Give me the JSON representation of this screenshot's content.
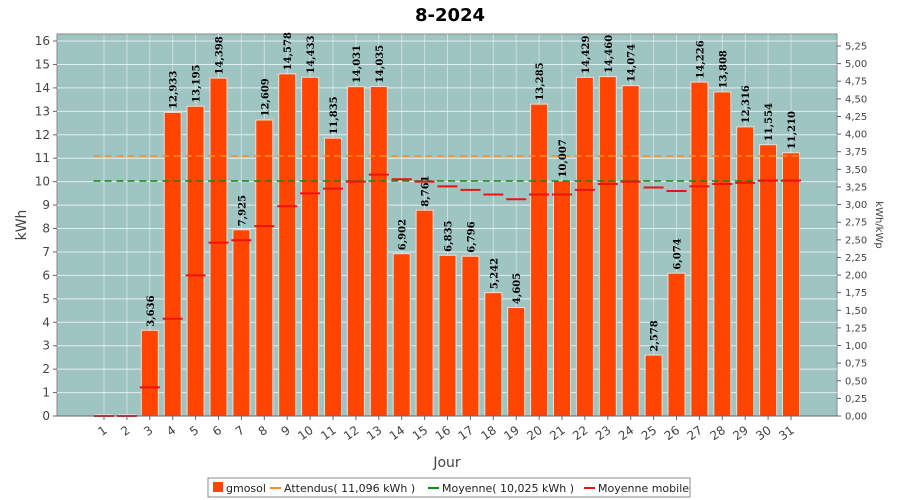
{
  "chart_data": {
    "type": "bar",
    "title": "8-2024",
    "xlabel": "Jour",
    "ylabel": "kWh",
    "ylabel_right": "kWh/kWp",
    "ylim": [
      0,
      16.3
    ],
    "yticks": [
      "0",
      "1",
      "2",
      "3",
      "4",
      "5",
      "6",
      "7",
      "8",
      "9",
      "10",
      "11",
      "12",
      "13",
      "14",
      "15",
      "16"
    ],
    "ylim_right": [
      0,
      5.42
    ],
    "yticks_right": [
      "0,00",
      "0,25",
      "0,50",
      "0,75",
      "1,00",
      "1,25",
      "1,50",
      "1,75",
      "2,00",
      "2,25",
      "2,50",
      "2,75",
      "3,00",
      "3,25",
      "3,50",
      "3,75",
      "4,00",
      "4,25",
      "4,50",
      "4,75",
      "5,00",
      "5,25"
    ],
    "categories": [
      "1",
      "2",
      "3",
      "4",
      "5",
      "6",
      "7",
      "8",
      "9",
      "10",
      "11",
      "12",
      "13",
      "14",
      "15",
      "16",
      "17",
      "18",
      "19",
      "20",
      "21",
      "22",
      "23",
      "24",
      "25",
      "26",
      "27",
      "28",
      "29",
      "30",
      "31"
    ],
    "series": [
      {
        "name": "gmosol",
        "color": "#ff4500",
        "values": [
          0.03,
          0.03,
          3.636,
          12.933,
          13.195,
          14.398,
          7.925,
          12.609,
          14.578,
          14.433,
          11.835,
          14.031,
          14.035,
          6.902,
          8.761,
          6.835,
          6.796,
          5.242,
          4.605,
          13.285,
          10.007,
          14.429,
          14.46,
          14.074,
          2.578,
          6.074,
          14.226,
          13.808,
          12.316,
          11.554,
          11.21
        ],
        "labels": [
          "",
          "",
          "3,636",
          "12,933",
          "13,195",
          "14,398",
          "7,925",
          "12,609",
          "14,578",
          "14,433",
          "11,835",
          "14,031",
          "14,035",
          "6,902",
          "8,761",
          "6,835",
          "6,796",
          "5,242",
          "4,605",
          "13,285",
          "10,007",
          "14,429",
          "14,460",
          "14,074",
          "2,578",
          "6,074",
          "14,226",
          "13,808",
          "12,316",
          "11,554",
          "11,210"
        ]
      },
      {
        "name": "Attendus( 11,096 kWh )",
        "color": "#ff8c1a",
        "values": [
          11.096,
          11.096,
          11.096,
          11.096,
          11.096,
          11.096,
          11.096,
          11.096,
          11.096,
          11.096,
          11.096,
          11.096,
          11.096,
          11.096,
          11.096,
          11.096,
          11.096,
          11.096,
          11.096,
          11.096,
          11.096,
          11.096,
          11.096,
          11.096,
          11.096,
          11.096,
          11.096,
          11.096,
          11.096,
          11.096,
          11.096
        ]
      },
      {
        "name": "Moyenne( 10,025 kWh )",
        "color": "#118811",
        "values": [
          10.025,
          10.025,
          10.025,
          10.025,
          10.025,
          10.025,
          10.025,
          10.025,
          10.025,
          10.025,
          10.025,
          10.025,
          10.025,
          10.025,
          10.025,
          10.025,
          10.025,
          10.025,
          10.025,
          10.025,
          10.025,
          10.025,
          10.025,
          10.025,
          10.025,
          10.025,
          10.025,
          10.025,
          10.025,
          10.025,
          10.025
        ]
      },
      {
        "name": "Moyenne mobile",
        "color": "#ee1111",
        "values": [
          0.0,
          0.0,
          1.22,
          4.15,
          6.0,
          7.4,
          7.5,
          8.1,
          8.95,
          9.5,
          9.7,
          10.0,
          10.3,
          10.1,
          10.0,
          9.8,
          9.65,
          9.45,
          9.25,
          9.45,
          9.45,
          9.65,
          9.9,
          10.0,
          9.75,
          9.6,
          9.8,
          9.9,
          9.95,
          10.05,
          10.05
        ]
      }
    ],
    "grid": true,
    "legend_position": "bottom",
    "background_color": "#9fc5c3"
  }
}
